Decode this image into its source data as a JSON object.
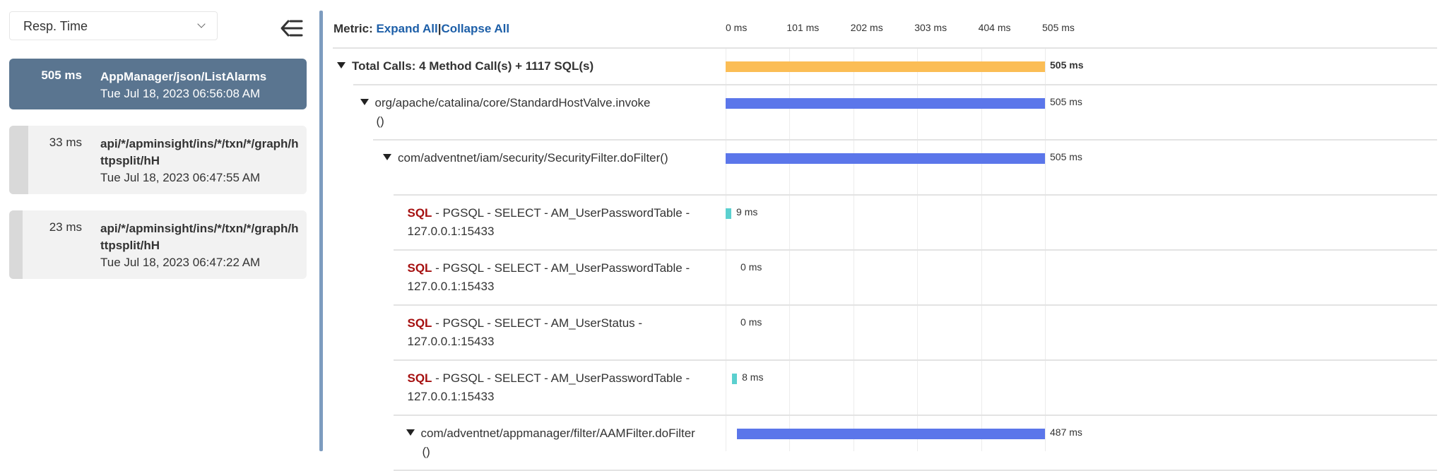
{
  "sidebar": {
    "metric_select": "Resp. Time",
    "transactions": [
      {
        "duration": "505 ms",
        "name": "AppManager/json/ListAlarms",
        "time": "Tue Jul 18, 2023 06:56:08 AM",
        "selected": true
      },
      {
        "duration": "33 ms",
        "name": "api/*/apminsight/ins/*/txn/*/graph/httpsplit/hH",
        "time": "Tue Jul 18, 2023 06:47:55 AM",
        "selected": false
      },
      {
        "duration": "23 ms",
        "name": "api/*/apminsight/ins/*/txn/*/graph/httpsplit/hH",
        "time": "Tue Jul 18, 2023 06:47:22 AM",
        "selected": false
      }
    ]
  },
  "header": {
    "metric_label": "Metric:",
    "expand_all": "Expand All",
    "separator": "|",
    "collapse_all": "Collapse All"
  },
  "colors": {
    "total": "#fbbd55",
    "method": "#5b76ea",
    "sql": "#5bd0cf",
    "sql_keyword": "#a50f0f",
    "link": "#1d5fa8",
    "selected_item": "#5a7590"
  },
  "chart_data": {
    "type": "bar",
    "orientation": "horizontal-gantt",
    "xlim": [
      0,
      505
    ],
    "ticks": [
      "0 ms",
      "101 ms",
      "202 ms",
      "303 ms",
      "404 ms",
      "505 ms"
    ],
    "tick_values": [
      0,
      101,
      202,
      303,
      404,
      505
    ],
    "grid": true,
    "rows": [
      {
        "level": 0,
        "kind": "total",
        "label": "Total Calls: 4 Method Call(s) + 1117 SQL(s)",
        "start": 0,
        "value": 505,
        "value_label": "505 ms",
        "expandable": true
      },
      {
        "level": 1,
        "kind": "method",
        "label": "org/apache/catalina/core/StandardHostValve.invoke()",
        "start": 0,
        "value": 505,
        "value_label": "505 ms",
        "expandable": true
      },
      {
        "level": 2,
        "kind": "method",
        "label": "com/adventnet/iam/security/SecurityFilter.doFilter()",
        "start": 0,
        "value": 505,
        "value_label": "505 ms",
        "expandable": true
      },
      {
        "level": 3,
        "kind": "sql",
        "keyword": "SQL",
        "label": " - PGSQL - SELECT - AM_UserPasswordTable -",
        "host": "127.0.0.1:15433",
        "start": 0,
        "value": 9,
        "value_label": "9 ms"
      },
      {
        "level": 3,
        "kind": "sql",
        "keyword": "SQL",
        "label": " - PGSQL - SELECT - AM_UserPasswordTable -",
        "host": "127.0.0.1:15433",
        "start": 9,
        "value": 0,
        "value_label": "0 ms"
      },
      {
        "level": 3,
        "kind": "sql",
        "keyword": "SQL",
        "label": " - PGSQL - SELECT - AM_UserStatus -",
        "host": "127.0.0.1:15433",
        "start": 9,
        "value": 0,
        "value_label": "0 ms"
      },
      {
        "level": 3,
        "kind": "sql",
        "keyword": "SQL",
        "label": " - PGSQL - SELECT - AM_UserPasswordTable -",
        "host": "127.0.0.1:15433",
        "start": 10,
        "value": 8,
        "value_label": "8 ms"
      },
      {
        "level": 3,
        "kind": "method",
        "label": "com/adventnet/appmanager/filter/AAMFilter.doFilter()",
        "start": 18,
        "value": 487,
        "value_label": "487 ms",
        "expandable": true
      }
    ]
  }
}
